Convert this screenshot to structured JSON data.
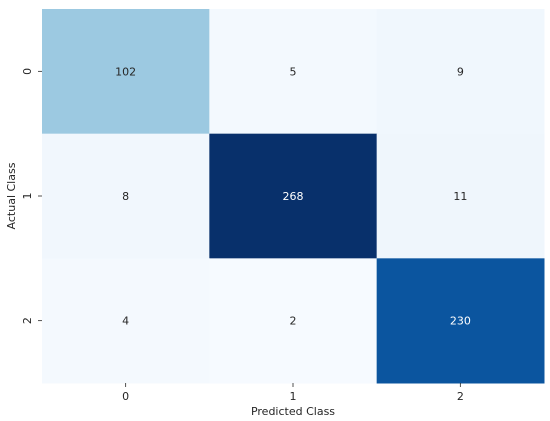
{
  "chart_data": {
    "type": "heatmap",
    "title": "",
    "xlabel": "Predicted Class",
    "ylabel": "Actual Class",
    "x_categories": [
      "0",
      "1",
      "2"
    ],
    "y_categories": [
      "0",
      "1",
      "2"
    ],
    "values": [
      [
        102,
        5,
        9
      ],
      [
        8,
        268,
        11
      ],
      [
        4,
        2,
        230
      ]
    ],
    "colormap": "Blues",
    "color_range": [
      0,
      268
    ],
    "colorbar": false,
    "annotations": true
  }
}
